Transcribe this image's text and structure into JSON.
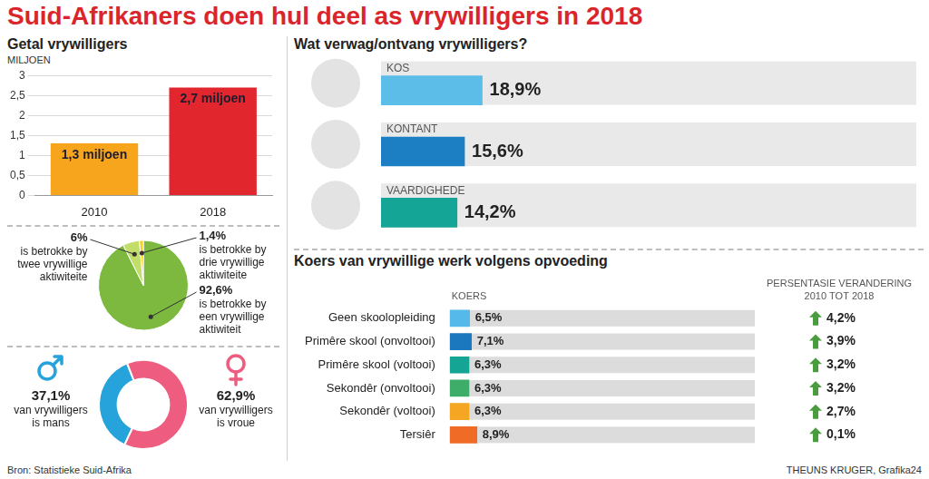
{
  "title": "Suid-Afrikaners doen hul deel as vrywilligers in 2018",
  "source": "Bron: Statistieke Suid-Afrika",
  "credit": "THEUNS KRUGER, Grafika24",
  "chart_data": [
    {
      "type": "bar",
      "title": "Getal vrywilligers",
      "ylabel": "MILJOEN",
      "categories": [
        "2010",
        "2018"
      ],
      "values": [
        1.3,
        2.7
      ],
      "value_labels": [
        "1,3 miljoen",
        "2,7 miljoen"
      ],
      "colors": [
        "#f6a51c",
        "#e1262d"
      ],
      "ylim": [
        0,
        3
      ],
      "yticks": [
        0,
        {
          "value": 0.5,
          "label": "0,5"
        },
        1,
        {
          "value": 1.5,
          "label": "1,5"
        },
        2,
        {
          "value": 2.5,
          "label": "2,5"
        },
        3
      ],
      "grid": true,
      "data_labels": true
    },
    {
      "type": "pie",
      "categories": [
        "is betrokke by een vrywillige aktiwiteit",
        "is betrokke by twee vrywillige aktiwiteite",
        "is betrokke by drie vrywillige aktiwiteite"
      ],
      "values": [
        92.6,
        6,
        1.4
      ],
      "value_labels": [
        "92,6%",
        "6%",
        "1,4%"
      ],
      "colors": [
        "#7db83f",
        "#c3dd6a",
        "#f4d21f"
      ],
      "data_labels": true
    },
    {
      "type": "doughnut",
      "categories": [
        "van vrywilligers is mans",
        "van vrywilligers is vroue"
      ],
      "values": [
        37.1,
        62.9
      ],
      "value_labels": [
        "37,1%",
        "62,9%"
      ],
      "colors": [
        "#27a3dc",
        "#ee5d7f"
      ],
      "data_labels": true
    },
    {
      "type": "bar",
      "orientation": "horizontal",
      "title": "Wat verwag/ontvang vrywilligers?",
      "categories": [
        "KOS",
        "KONTANT",
        "VAARDIGHEDE"
      ],
      "values": [
        18.9,
        15.6,
        14.2
      ],
      "value_labels": [
        "18,9%",
        "15,6%",
        "14,2%"
      ],
      "colors": [
        "#5cbde9",
        "#1d7fc3",
        "#15a596"
      ],
      "xlim": [
        0,
        100
      ],
      "tick_labels": false,
      "data_labels": true
    },
    {
      "type": "bar",
      "orientation": "horizontal",
      "title": "Koers van vrywillige werk volgens opvoeding",
      "xlabel": "KOERS",
      "categories": [
        "Geen skoolopleiding",
        "Primêre skool (onvoltooi)",
        "Primêre skool (voltooi)",
        "Sekondêr (onvoltooi)",
        "Sekondêr (voltooi)",
        "Tersiêr"
      ],
      "values": [
        6.5,
        7.1,
        6.3,
        6.3,
        6.3,
        8.9
      ],
      "value_labels": [
        "6,5%",
        "7,1%",
        "6,3%",
        "6,3%",
        "6,3%",
        "8,9%"
      ],
      "colors": [
        "#55b9e9",
        "#1c78be",
        "#14a594",
        "#3fad6a",
        "#f5a623",
        "#f06c26"
      ],
      "xlim": [
        0,
        100
      ],
      "tick_labels": "y",
      "data_labels": true,
      "change_title": "PERSENTASIE VERANDERING 2010 TOT 2018",
      "change_values": [
        4.2,
        3.9,
        3.2,
        3.2,
        2.7,
        0.1
      ],
      "change_labels": [
        "4,2%",
        "3,9%",
        "3,2%",
        "3,2%",
        "2,7%",
        "0,1%"
      ]
    }
  ]
}
